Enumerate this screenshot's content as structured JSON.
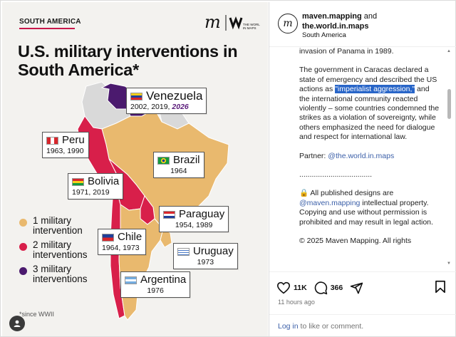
{
  "post": {
    "tag": "SOUTH AMERICA",
    "logo_text": "THE WORLD IN MAPS",
    "title": "U.S. military interventions in South America*",
    "countries": {
      "venezuela": {
        "name": "Venezuela",
        "years": "2002, 2019, ",
        "years_hl": "2026"
      },
      "peru": {
        "name": "Peru",
        "years": "1963, 1990"
      },
      "brazil": {
        "name": "Brazil",
        "years": "1964"
      },
      "bolivia": {
        "name": "Bolivia",
        "years": "1971, 2019"
      },
      "paraguay": {
        "name": "Paraguay",
        "years": "1954, 1989"
      },
      "chile": {
        "name": "Chile",
        "years": "1964, 1973"
      },
      "uruguay": {
        "name": "Uruguay",
        "years": "1973"
      },
      "argentina": {
        "name": "Argentina",
        "years": "1976"
      }
    },
    "legend": [
      {
        "label": "1 military intervention",
        "color": "#e9b96e"
      },
      {
        "label": "2 military interventions",
        "color": "#d81f4a"
      },
      {
        "label": "3 military interventions",
        "color": "#4b1a6e"
      }
    ],
    "footnote": "*since WWII",
    "colors": {
      "one": "#e9b96e",
      "two": "#d81f4a",
      "three": "#4b1a6e",
      "none": "#d9d9d9"
    }
  },
  "panel": {
    "author1": "maven.mapping",
    "and": " and",
    "author2": "the.world.in.maps",
    "location": "South America",
    "caption_p1": "invasion of Panama in 1989.",
    "caption_p2a": "The government in Caracas declared a state of emergency and described the US actions as ",
    "caption_p2_hl": "\"imperialist aggression,\"",
    "caption_p2b": " and the international community reacted violently – some countries condemned the strikes as a violation of sovereignty, while others emphasized the need for dialogue and respect for international law.",
    "partner_label": "Partner: ",
    "partner_link": "@the.world.in.maps",
    "dots": "...................................",
    "rights_a": "🔒 All published designs are ",
    "rights_link": "@maven.mapping",
    "rights_b": " intellectual property. Copying and use without permission is prohibited and may result in legal action.",
    "copyright": "© 2025 Maven Mapping. All rights",
    "likes": "11K",
    "comments": "366",
    "time": "11 hours ago",
    "login_link": "Log in",
    "login_rest": " to like or comment."
  }
}
